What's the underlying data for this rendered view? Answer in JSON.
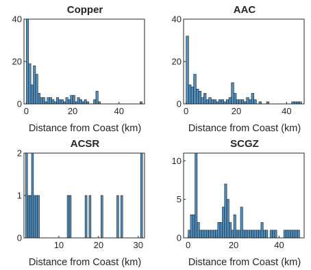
{
  "colors": {
    "bar_fill": "#4f8fbf",
    "bar_edge": "#1a1a1a",
    "axis": "#262626"
  },
  "chart_data": [
    {
      "type": "bar",
      "title": "Copper",
      "xlabel": "Distance from Coast (km)",
      "ylabel": "",
      "xlim": [
        -1,
        51
      ],
      "ylim": [
        0,
        40
      ],
      "xticks": [
        0,
        20,
        40
      ],
      "xtick_labels": [
        "0",
        "20",
        "40"
      ],
      "yticks": [
        0,
        20,
        40
      ],
      "ytick_labels": [
        "0",
        "20",
        "40"
      ],
      "bin_width": 1,
      "bin_starts": [
        0,
        1,
        2,
        3,
        4,
        5,
        6,
        7,
        8,
        9,
        10,
        11,
        12,
        13,
        14,
        15,
        16,
        17,
        18,
        19,
        20,
        21,
        22,
        23,
        24,
        25,
        26,
        27,
        28,
        29,
        30,
        31,
        32,
        33,
        34,
        35,
        36,
        37,
        38,
        39,
        40,
        41,
        42,
        43,
        44,
        45,
        46,
        47,
        48,
        49
      ],
      "values": [
        40,
        19,
        9,
        18,
        14,
        5,
        3,
        3,
        1,
        3,
        3,
        2,
        1,
        3,
        2,
        2,
        1,
        3,
        2,
        4,
        4,
        1,
        3,
        2,
        1,
        2,
        1,
        0,
        0,
        2,
        6,
        1,
        0,
        0,
        0,
        0,
        0,
        0,
        0,
        0,
        0,
        0,
        0,
        0,
        0,
        0,
        0,
        0,
        0,
        1
      ]
    },
    {
      "type": "bar",
      "title": "AAC",
      "xlabel": "Distance from Coast (km)",
      "ylabel": "",
      "xlim": [
        -1,
        47
      ],
      "ylim": [
        0,
        40
      ],
      "xticks": [
        0,
        20,
        40
      ],
      "xtick_labels": [
        "0",
        "20",
        "40"
      ],
      "yticks": [
        0,
        20,
        40
      ],
      "ytick_labels": [
        "0",
        "20",
        "40"
      ],
      "bin_width": 1,
      "bin_starts": [
        0,
        1,
        2,
        3,
        4,
        5,
        6,
        7,
        8,
        9,
        10,
        11,
        12,
        13,
        14,
        15,
        16,
        17,
        18,
        19,
        20,
        21,
        22,
        23,
        24,
        25,
        26,
        27,
        28,
        29,
        30,
        31,
        32,
        33,
        34,
        35,
        36,
        37,
        38,
        39,
        40,
        41,
        42,
        43,
        44,
        45
      ],
      "values": [
        32,
        9,
        8,
        14,
        7,
        6,
        3,
        5,
        2,
        3,
        2,
        2,
        1,
        2,
        2,
        1,
        2,
        3,
        10,
        5,
        2,
        2,
        2,
        1,
        3,
        2,
        5,
        2,
        0,
        1,
        0,
        0,
        1,
        0,
        0,
        0,
        0,
        0,
        0,
        0,
        0,
        0,
        1,
        1,
        1,
        1
      ]
    },
    {
      "type": "bar",
      "title": "ACSR",
      "xlabel": "Distance from Coast (km)",
      "ylabel": "",
      "xlim": [
        1.2,
        31.6
      ],
      "ylim": [
        0,
        2
      ],
      "xticks": [
        10,
        20,
        30
      ],
      "xtick_labels": [
        "10",
        "20",
        "30"
      ],
      "yticks": [
        0,
        1,
        2
      ],
      "ytick_labels": [
        "0",
        "1",
        "2"
      ],
      "bin_width": 0.5,
      "bin_starts": [
        1.6,
        2.1,
        2.6,
        3.1,
        3.6,
        4.1,
        4.6,
        12.1,
        12.6,
        16.6,
        17.6,
        20.6,
        24.6,
        25.6,
        30.6
      ],
      "values": [
        2,
        1,
        1,
        2,
        1,
        1,
        1,
        1,
        1,
        1,
        1,
        1,
        1,
        1,
        2
      ]
    },
    {
      "type": "bar",
      "title": "SCGZ",
      "xlabel": "Distance from Coast (km)",
      "ylabel": "",
      "xlim": [
        -2,
        51
      ],
      "ylim": [
        0,
        11
      ],
      "xticks": [
        0,
        20,
        40
      ],
      "xtick_labels": [
        "0",
        "20",
        "40"
      ],
      "yticks": [
        0,
        5,
        10
      ],
      "ytick_labels": [
        "0",
        "5",
        "10"
      ],
      "bin_width": 1,
      "bin_starts": [
        0,
        1,
        2,
        3,
        4,
        5,
        6,
        7,
        8,
        9,
        10,
        11,
        12,
        13,
        14,
        15,
        16,
        17,
        18,
        19,
        20,
        21,
        22,
        23,
        24,
        25,
        26,
        27,
        28,
        29,
        30,
        31,
        32,
        33,
        34,
        35,
        36,
        37,
        38,
        39,
        40,
        41,
        42,
        43,
        44,
        45,
        46,
        47,
        48,
        49
      ],
      "values": [
        1,
        3,
        3,
        11,
        2,
        1,
        1,
        1,
        1,
        1,
        1,
        1,
        1,
        2,
        2,
        4,
        7,
        5,
        2,
        1,
        3,
        1,
        1,
        4,
        1,
        1,
        1,
        1,
        1,
        1,
        1,
        1,
        2,
        1,
        1,
        0,
        1,
        1,
        1,
        0,
        0,
        0,
        1,
        1,
        1,
        1,
        1,
        1,
        1,
        0
      ]
    }
  ]
}
